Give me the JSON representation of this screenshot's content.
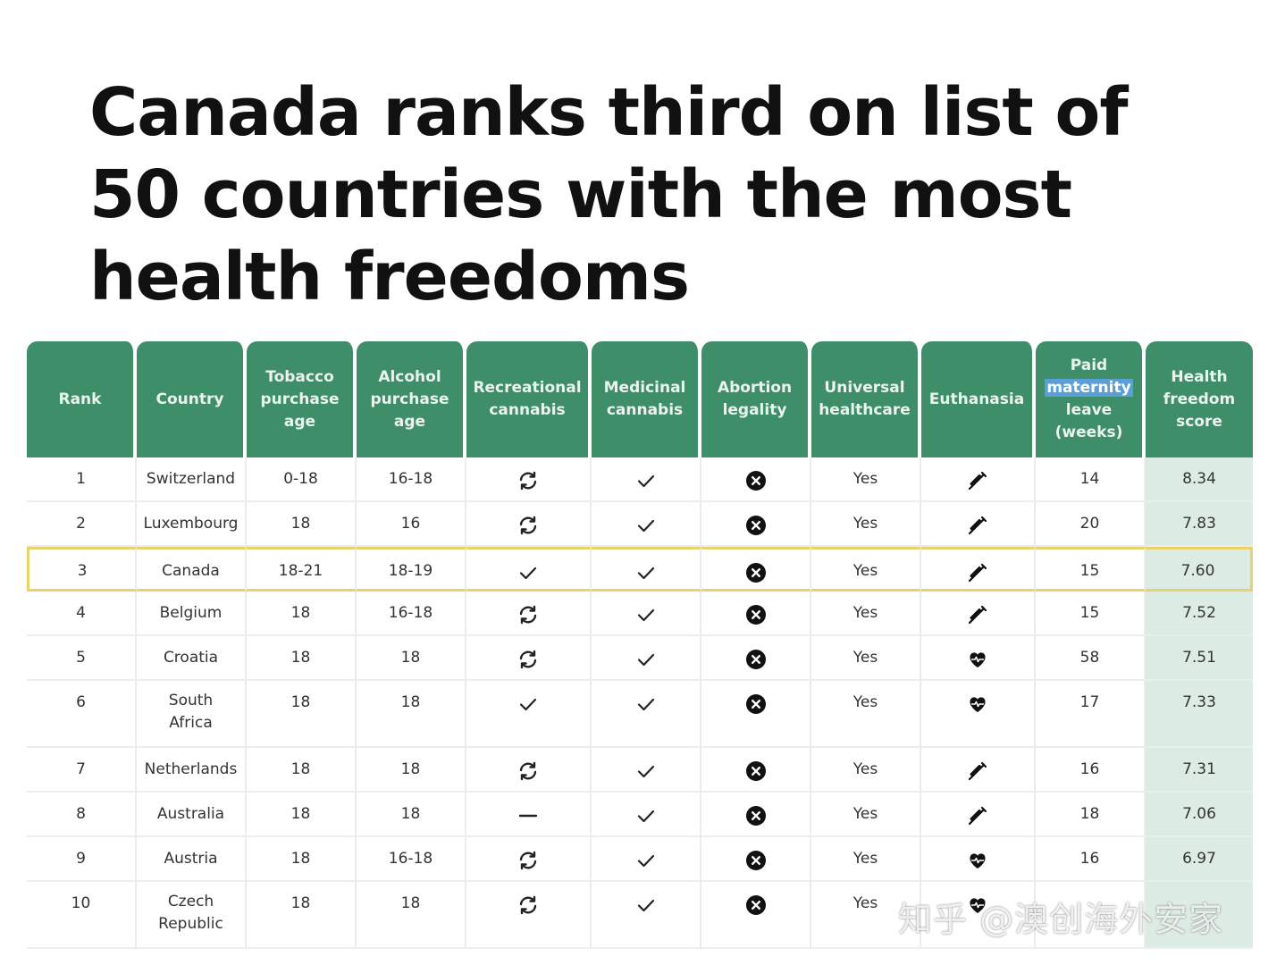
{
  "chart_data": {
    "type": "table",
    "title": "Canada ranks third on list of 50 countries with the most health freedoms",
    "columns": [
      "Rank",
      "Country",
      "Tobacco purchase age",
      "Alcohol purchase age",
      "Recreational cannabis",
      "Medicinal cannabis",
      "Abortion legality",
      "Universal healthcare",
      "Euthanasia",
      "Paid maternity leave (weeks)",
      "Health freedom score"
    ],
    "highlighted_header_word": "maternity",
    "highlighted_row": "3",
    "icon_legend": {
      "cycle": "cycle-icon",
      "check": "check-icon",
      "dash": "dash-icon",
      "x-circle": "x-circle-icon",
      "syringe": "syringe-icon",
      "heartbeat": "heartbeat-icon"
    },
    "rows": [
      {
        "rank": "1",
        "country": "Switzerland",
        "tobacco": "0-18",
        "alcohol": "16-18",
        "recreational": "cycle",
        "medicinal": "check",
        "abortion": "x-circle",
        "healthcare": "Yes",
        "euthanasia": "syringe",
        "leave": "14",
        "score": "8.34"
      },
      {
        "rank": "2",
        "country": "Luxembourg",
        "tobacco": "18",
        "alcohol": "16",
        "recreational": "cycle",
        "medicinal": "check",
        "abortion": "x-circle",
        "healthcare": "Yes",
        "euthanasia": "syringe",
        "leave": "20",
        "score": "7.83"
      },
      {
        "rank": "3",
        "country": "Canada",
        "tobacco": "18-21",
        "alcohol": "18-19",
        "recreational": "check",
        "medicinal": "check",
        "abortion": "x-circle",
        "healthcare": "Yes",
        "euthanasia": "syringe",
        "leave": "15",
        "score": "7.60"
      },
      {
        "rank": "4",
        "country": "Belgium",
        "tobacco": "18",
        "alcohol": "16-18",
        "recreational": "cycle",
        "medicinal": "check",
        "abortion": "x-circle",
        "healthcare": "Yes",
        "euthanasia": "syringe",
        "leave": "15",
        "score": "7.52"
      },
      {
        "rank": "5",
        "country": "Croatia",
        "tobacco": "18",
        "alcohol": "18",
        "recreational": "cycle",
        "medicinal": "check",
        "abortion": "x-circle",
        "healthcare": "Yes",
        "euthanasia": "heartbeat",
        "leave": "58",
        "score": "7.51"
      },
      {
        "rank": "6",
        "country": "South Africa",
        "tobacco": "18",
        "alcohol": "18",
        "recreational": "check",
        "medicinal": "check",
        "abortion": "x-circle",
        "healthcare": "Yes",
        "euthanasia": "heartbeat",
        "leave": "17",
        "score": "7.33"
      },
      {
        "rank": "7",
        "country": "Netherlands",
        "tobacco": "18",
        "alcohol": "18",
        "recreational": "cycle",
        "medicinal": "check",
        "abortion": "x-circle",
        "healthcare": "Yes",
        "euthanasia": "syringe",
        "leave": "16",
        "score": "7.31"
      },
      {
        "rank": "8",
        "country": "Australia",
        "tobacco": "18",
        "alcohol": "18",
        "recreational": "dash",
        "medicinal": "check",
        "abortion": "x-circle",
        "healthcare": "Yes",
        "euthanasia": "syringe",
        "leave": "18",
        "score": "7.06"
      },
      {
        "rank": "9",
        "country": "Austria",
        "tobacco": "18",
        "alcohol": "16-18",
        "recreational": "cycle",
        "medicinal": "check",
        "abortion": "x-circle",
        "healthcare": "Yes",
        "euthanasia": "heartbeat",
        "leave": "16",
        "score": "6.97"
      },
      {
        "rank": "10",
        "country": "Czech Republic",
        "tobacco": "18",
        "alcohol": "18",
        "recreational": "cycle",
        "medicinal": "check",
        "abortion": "x-circle",
        "healthcare": "Yes",
        "euthanasia": "heartbeat",
        "leave": "",
        "score": ""
      }
    ]
  },
  "watermark": "知乎 @澳创海外安家"
}
